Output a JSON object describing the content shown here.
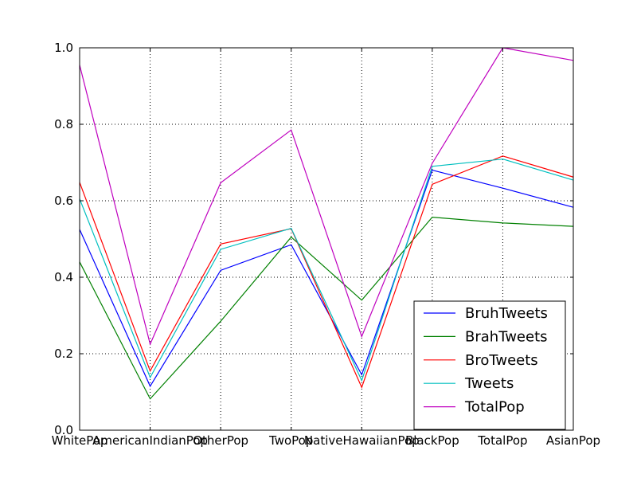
{
  "chart_data": {
    "type": "line",
    "title": "",
    "xlabel": "",
    "ylabel": "",
    "categories": [
      "WhitePop",
      "AmericanIndianPop",
      "OtherPop",
      "TwoPop",
      "NativeHawaiianPop",
      "BlackPop",
      "TotalPop",
      "AsianPop"
    ],
    "ylim": [
      0.0,
      1.0
    ],
    "yticks": [
      "0.0",
      "0.2",
      "0.4",
      "0.6",
      "0.8",
      "1.0"
    ],
    "grid": true,
    "legend_position": "lower-right",
    "series": [
      {
        "name": "BruhTweets",
        "color": "#0000ff",
        "values": [
          0.525,
          0.115,
          0.418,
          0.485,
          0.145,
          0.68,
          0.633,
          0.583
        ]
      },
      {
        "name": "BrahTweets",
        "color": "#008000",
        "values": [
          0.44,
          0.082,
          0.285,
          0.505,
          0.34,
          0.557,
          0.542,
          0.533
        ]
      },
      {
        "name": "BroTweets",
        "color": "#ff0000",
        "values": [
          0.648,
          0.155,
          0.487,
          0.527,
          0.112,
          0.643,
          0.717,
          0.662
        ]
      },
      {
        "name": "Tweets",
        "color": "#00bfbf",
        "values": [
          0.605,
          0.138,
          0.473,
          0.528,
          0.13,
          0.69,
          0.709,
          0.654
        ]
      },
      {
        "name": "TotalPop",
        "color": "#bf00bf",
        "values": [
          0.955,
          0.225,
          0.647,
          0.785,
          0.245,
          0.698,
          1.0,
          0.967
        ]
      }
    ]
  }
}
